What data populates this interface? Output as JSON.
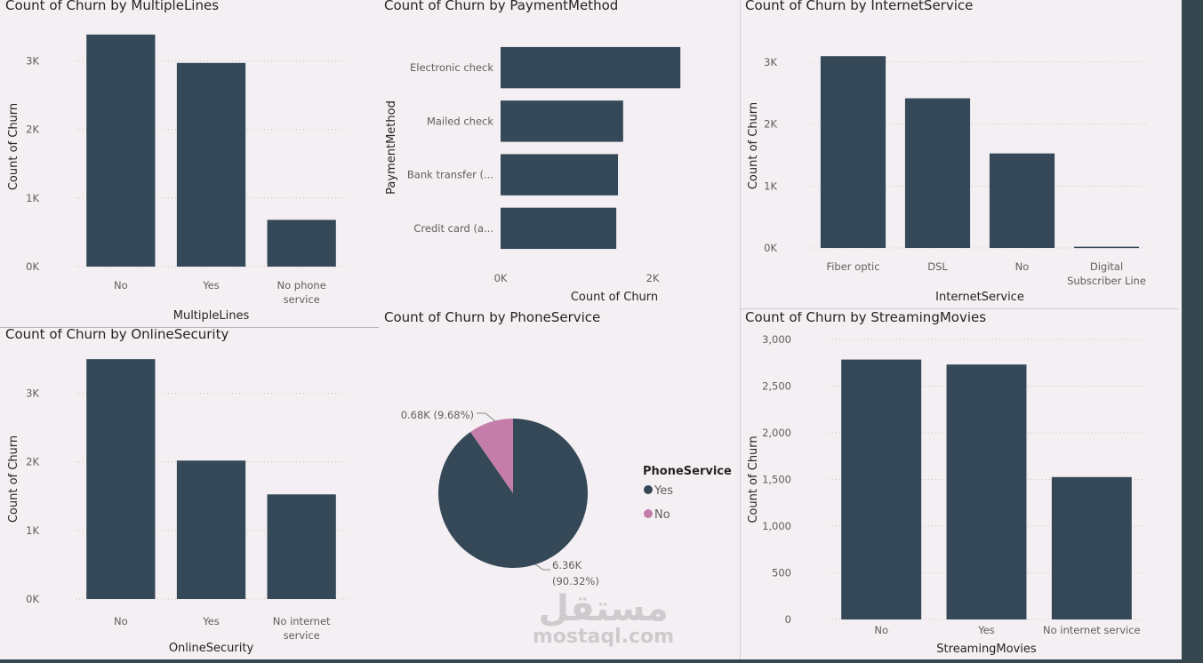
{
  "colors": {
    "bar": "#344857",
    "pie_no": "#c47ca8",
    "background": "#f3eff2"
  },
  "charts": {
    "multiplelines": {
      "title": "Count of Churn by MultipleLines",
      "chart_data": {
        "type": "bar",
        "categories": [
          "No",
          "Yes",
          "No phone service"
        ],
        "values": [
          3385,
          2971,
          682
        ],
        "xlabel": "MultipleLines",
        "ylabel": "Count of Churn",
        "ylim": [
          0,
          3500
        ],
        "yticks": [
          0,
          1000,
          2000,
          3000
        ],
        "ytick_labels": [
          "0K",
          "1K",
          "2K",
          "3K"
        ],
        "grid": true
      }
    },
    "paymentmethod": {
      "title": "Count of Churn by PaymentMethod",
      "chart_data": {
        "type": "bar",
        "orientation": "horizontal",
        "categories": [
          "Electronic check",
          "Mailed check",
          "Bank transfer (...",
          "Credit card (a..."
        ],
        "values": [
          2365,
          1612,
          1544,
          1522
        ],
        "xlabel": "Count of Churn",
        "ylabel": "PaymentMethod",
        "xlim": [
          0,
          2500
        ],
        "xticks": [
          0,
          2000
        ],
        "xtick_labels": [
          "0K",
          "2K"
        ],
        "grid": false
      }
    },
    "internetservice": {
      "title": "Count of Churn by InternetService",
      "chart_data": {
        "type": "bar",
        "categories": [
          "Fiber optic",
          "DSL",
          "No",
          "Digital Subscriber Line"
        ],
        "values": [
          3096,
          2416,
          1526,
          20
        ],
        "xlabel": "InternetService",
        "ylabel": "Count of Churn",
        "ylim": [
          0,
          3300
        ],
        "yticks": [
          0,
          1000,
          2000,
          3000
        ],
        "ytick_labels": [
          "0K",
          "1K",
          "2K",
          "3K"
        ],
        "grid": true
      }
    },
    "onlinesecurity": {
      "title": "Count of Churn by OnlineSecurity",
      "chart_data": {
        "type": "bar",
        "categories": [
          "No",
          "Yes",
          "No internet service"
        ],
        "values": [
          3498,
          2019,
          1526
        ],
        "xlabel": "OnlineSecurity",
        "ylabel": "Count of Churn",
        "ylim": [
          0,
          3500
        ],
        "yticks": [
          0,
          1000,
          2000,
          3000
        ],
        "ytick_labels": [
          "0K",
          "1K",
          "2K",
          "3K"
        ],
        "grid": true
      }
    },
    "phoneservice": {
      "title": "Count of Churn by PhoneService",
      "chart_data": {
        "type": "pie",
        "legend_title": "PhoneService",
        "legend_position": "right",
        "series": [
          {
            "name": "Yes",
            "value": 6360,
            "percent": 90.32,
            "label": "6.36K",
            "label_pct": "(90.32%)"
          },
          {
            "name": "No",
            "value": 680,
            "percent": 9.68,
            "label": "0.68K (9.68%)"
          }
        ]
      }
    },
    "streamingmovies": {
      "title": "Count of Churn by StreamingMovies",
      "chart_data": {
        "type": "bar",
        "categories": [
          "No",
          "Yes",
          "No internet service"
        ],
        "values": [
          2785,
          2732,
          1526
        ],
        "xlabel": "StreamingMovies",
        "ylabel": "Count of Churn",
        "ylim": [
          0,
          3000
        ],
        "yticks": [
          0,
          500,
          1000,
          1500,
          2000,
          2500,
          3000
        ],
        "ytick_labels": [
          "0",
          "500",
          "1,000",
          "1,500",
          "2,000",
          "2,500",
          "3,000"
        ],
        "grid": true
      }
    }
  },
  "watermark": {
    "arabic": "مستقل",
    "latin": "mostaql.com"
  }
}
